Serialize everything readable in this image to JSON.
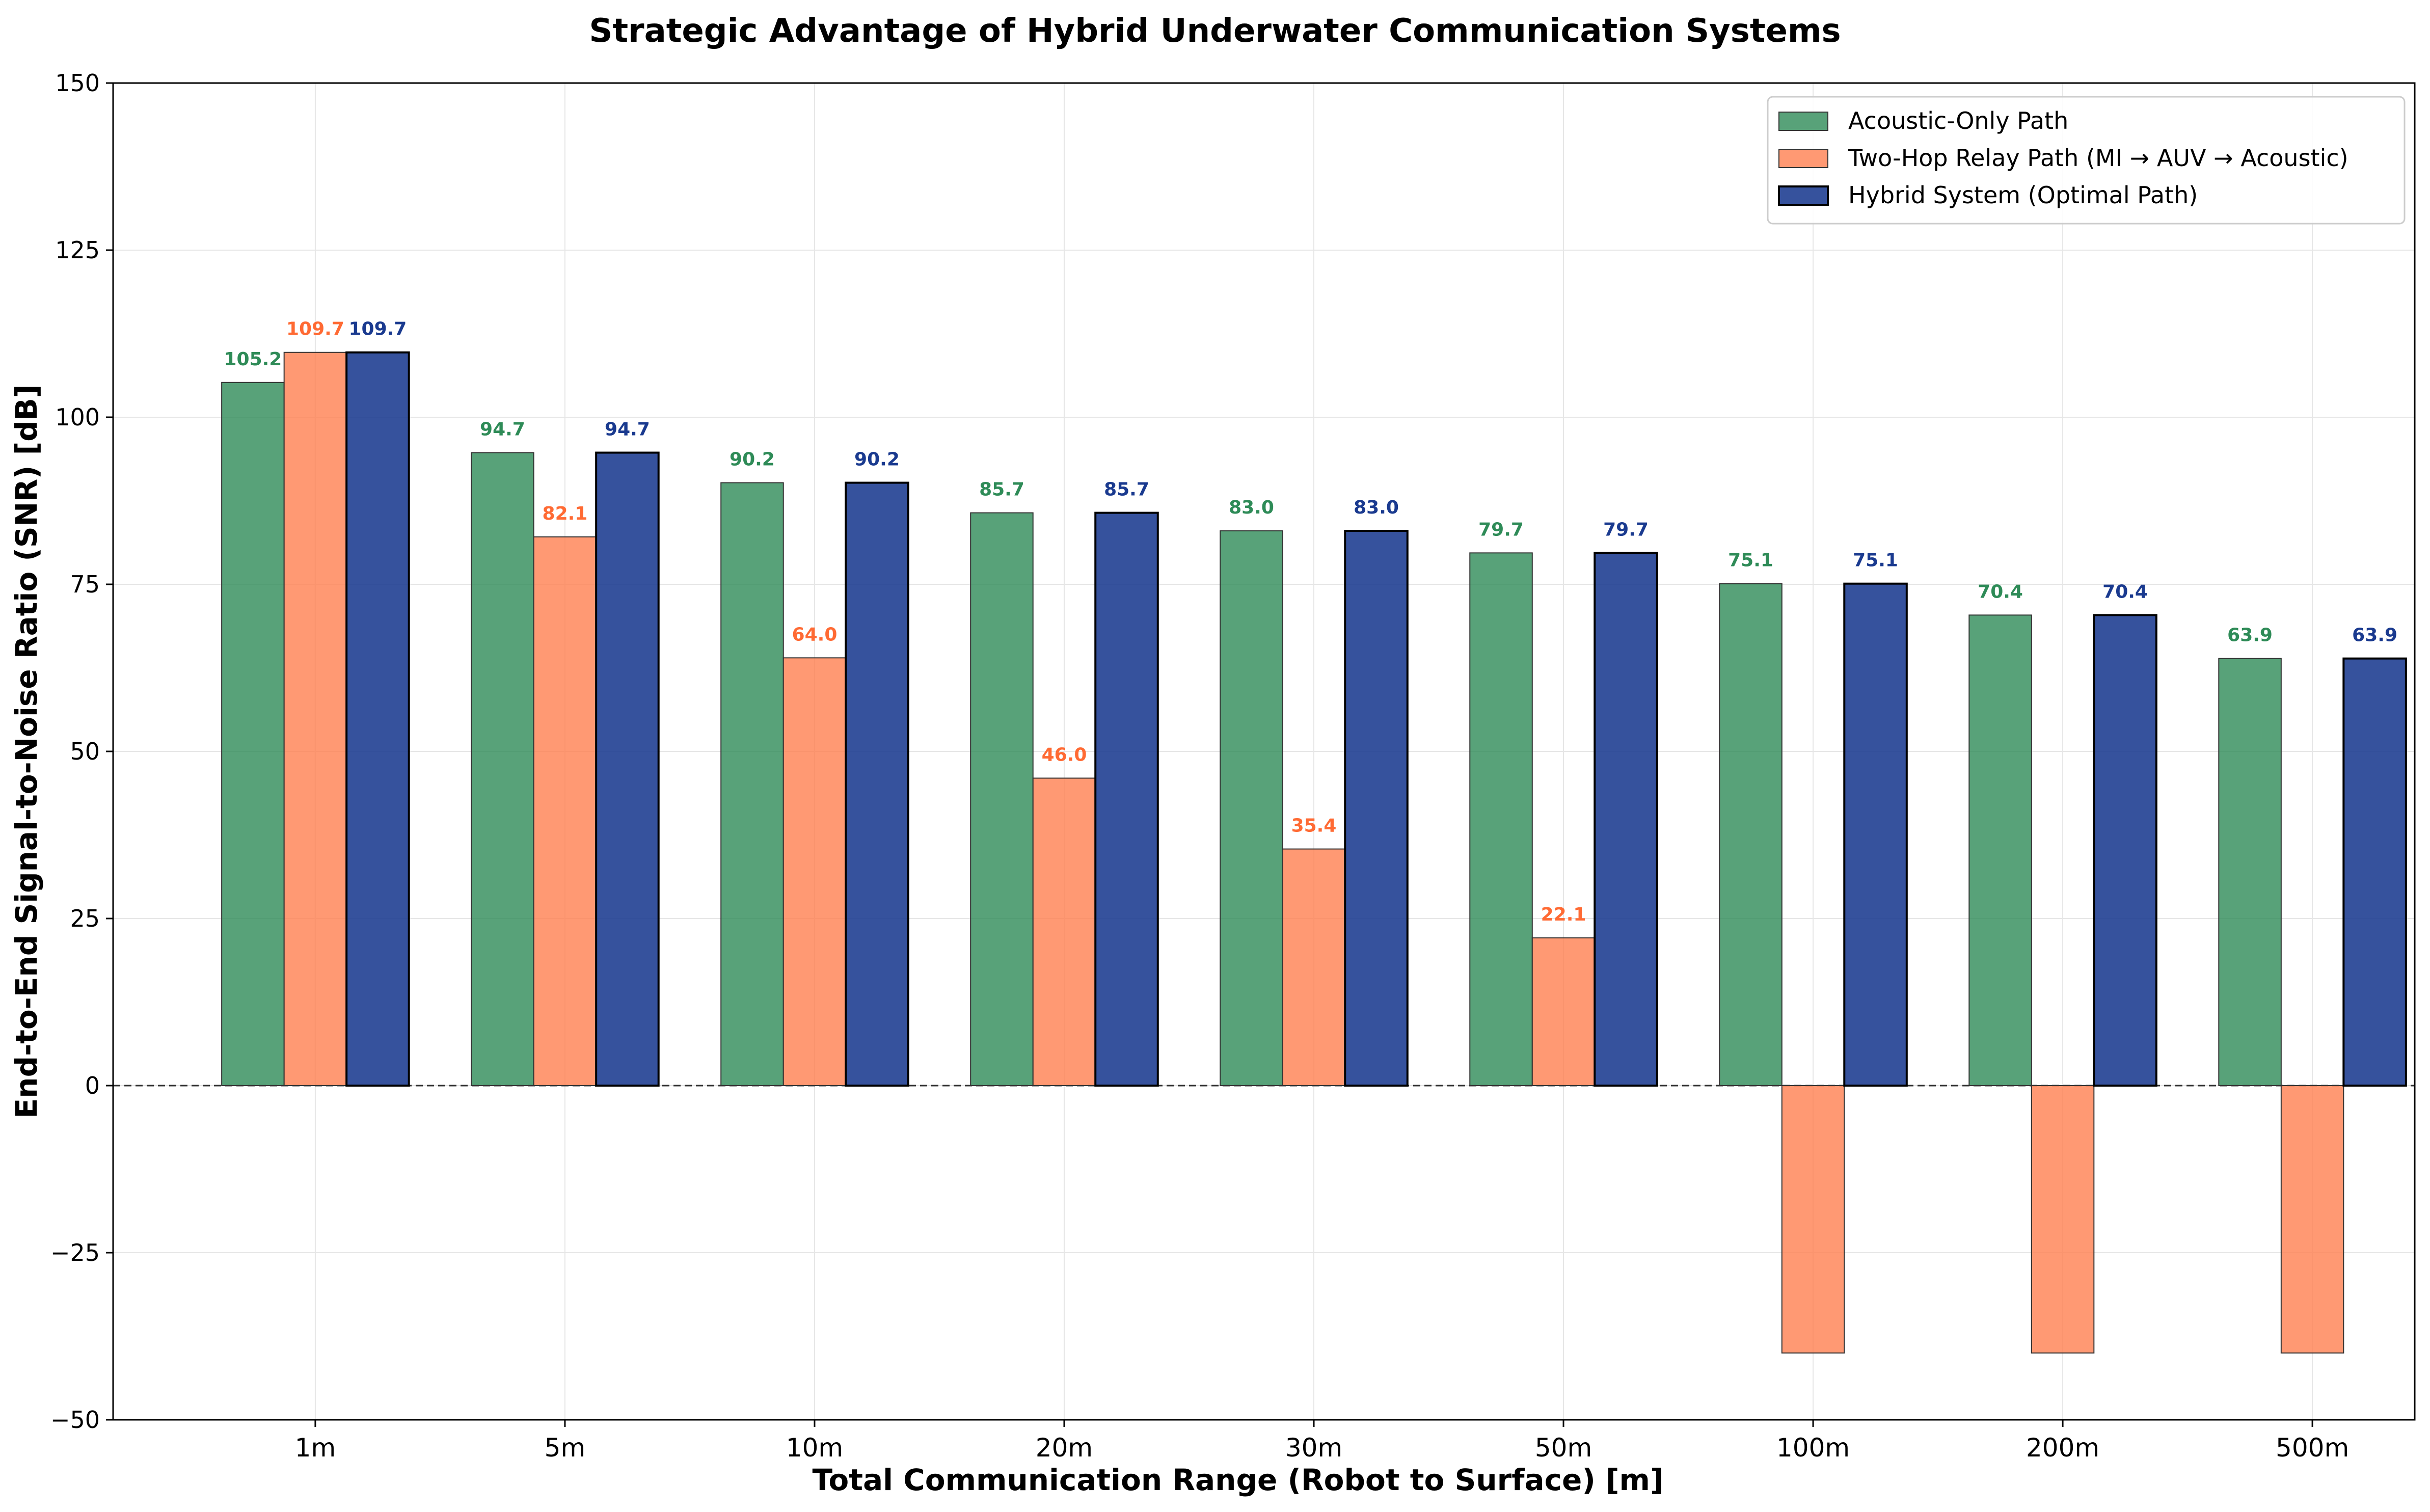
{
  "chart_data": {
    "type": "bar",
    "title": "Strategic Advantage of Hybrid Underwater Communication Systems",
    "xlabel": "Total Communication Range (Robot to Surface) [m]",
    "ylabel": "End-to-End Signal-to-Noise Ratio (SNR) [dB]",
    "categories": [
      "1m",
      "5m",
      "10m",
      "20m",
      "30m",
      "50m",
      "100m",
      "200m",
      "500m"
    ],
    "ylim": [
      -50,
      150
    ],
    "yticks": [
      -50,
      -25,
      0,
      25,
      50,
      75,
      100,
      125,
      150
    ],
    "ytick_labels": [
      "−50",
      "−25",
      "0",
      "25",
      "50",
      "75",
      "100",
      "125",
      "150"
    ],
    "grid": true,
    "zero_line": "dashed",
    "legend_position": "top-right",
    "series": [
      {
        "name": "Acoustic-Only Path",
        "color": "#2e8b57",
        "label_color": "#2e8b57",
        "values": [
          105.2,
          94.7,
          90.2,
          85.7,
          83.0,
          79.7,
          75.1,
          70.4,
          63.9
        ],
        "labels": [
          "105.2",
          "94.7",
          "90.2",
          "85.7",
          "83.0",
          "79.7",
          "75.1",
          "70.4",
          "63.9"
        ]
      },
      {
        "name": "Two-Hop Relay Path (MI → AUV → Acoustic)",
        "color": "#ff7f50",
        "label_color": "#ff6a33",
        "values": [
          109.7,
          82.1,
          64.0,
          46.0,
          35.4,
          22.1,
          -40.0,
          -40.0,
          -40.0
        ],
        "labels": [
          "109.7",
          "82.1",
          "64.0",
          "46.0",
          "35.4",
          "22.1",
          "",
          "",
          ""
        ]
      },
      {
        "name": "Hybrid System (Optimal Path)",
        "color": "#1a3a8f",
        "label_color": "#1a3a8f",
        "values": [
          109.7,
          94.7,
          90.2,
          85.7,
          83.0,
          79.7,
          75.1,
          70.4,
          63.9
        ],
        "labels": [
          "109.7",
          "94.7",
          "90.2",
          "85.7",
          "83.0",
          "79.7",
          "75.1",
          "70.4",
          "63.9"
        ]
      }
    ]
  }
}
